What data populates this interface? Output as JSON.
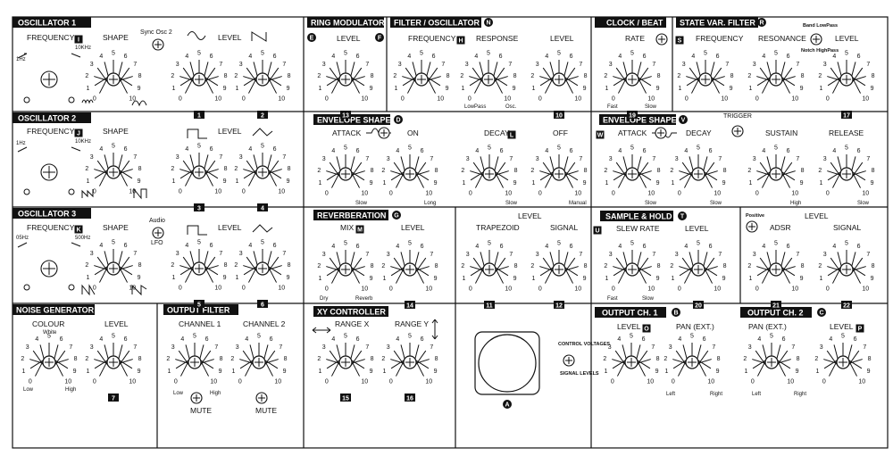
{
  "sections": {
    "osc1": {
      "title": "OSCILLATOR 1"
    },
    "osc2": {
      "title": "OSCILLATOR 2"
    },
    "osc3": {
      "title": "OSCILLATOR 3"
    },
    "noise": {
      "title": "NOISE GENERATOR"
    },
    "outfilt": {
      "title": "OUTPUT FILTER"
    },
    "ring": {
      "title": "RING MODULATOR"
    },
    "filtosc": {
      "title": "FILTER / OSCILLATOR"
    },
    "env1": {
      "title": "ENVELOPE SHAPER"
    },
    "reverb": {
      "title": "REVERBERATION"
    },
    "xy": {
      "title": "XY CONTROLLER"
    },
    "clock": {
      "title": "CLOCK / BEAT"
    },
    "svf": {
      "title": "STATE VAR. FILTER"
    },
    "env2": {
      "title": "ENVELOPE SHAPER"
    },
    "sh": {
      "title": "SAMPLE & HOLD"
    },
    "out1": {
      "title": "OUTPUT CH. 1"
    },
    "out2": {
      "title": "OUTPUT CH. 2"
    }
  },
  "badges": {
    "osc2": "J",
    "osc3": "K",
    "ring_e": "E",
    "ring_f": "F",
    "filtosc": "N",
    "filtosc_freq": "H",
    "env1": "D",
    "reverb": "G",
    "mix": "M",
    "clock": "?",
    "svf": "R",
    "svf_freq": "S",
    "env2": "V",
    "env2_w": "W",
    "sh": "T",
    "sh_u": "U",
    "out1": "B",
    "out2": "C",
    "out1_level": "O",
    "out2_level": "P",
    "env1_decay": "L",
    "osc1": "I",
    "center": "A"
  },
  "labels": {
    "frequency": "FREQUENCY",
    "shape": "SHAPE",
    "level": "LEVEL",
    "sync_osc2": "Sync Osc 2",
    "f1hz": "1Hz",
    "f10khz": "10KHz",
    "f05hz": "05Hz",
    "f500hz": "500Hz",
    "audio": "Audio",
    "lfo": "LFO",
    "colour": "COLOUR",
    "white": "White",
    "low": "Low",
    "high": "High",
    "channel1": "CHANNEL 1",
    "channel2": "CHANNEL 2",
    "mute": "MUTE",
    "response": "RESPONSE",
    "lowpass": "LowPass",
    "osc": "Osc.",
    "attack": "ATTACK",
    "on": "ON",
    "decay": "DECAY",
    "off": "OFF",
    "slow": "Slow",
    "long": "Long",
    "manual": "Manual",
    "mix": "MIX",
    "dry": "Dry",
    "reverb": "Reverb",
    "trapezoid": "TRAPEZOID",
    "signal": "SIGNAL",
    "range_x": "RANGE X",
    "range_y": "RANGE Y",
    "control_voltages": "CONTROL VOLTAGES",
    "signal_levels": "SIGNAL LEVELS",
    "rate": "RATE",
    "fast": "Fast",
    "resonance": "RESONANCE",
    "band_lowpass": "Band LowPass",
    "notch_highpass": "Notch HighPass",
    "trigger": "TRIGGER",
    "sustain": "SUSTAIN",
    "release": "RELEASE",
    "slew_rate": "SLEW RATE",
    "positive": "Positive",
    "adsr": "ADSR",
    "pan_ext": "PAN (EXT.)",
    "left": "Left",
    "right": "Right"
  },
  "dial_numbers": [
    "0",
    "1",
    "2",
    "3",
    "4",
    "5",
    "6",
    "7",
    "8",
    "9",
    "10"
  ],
  "dial_ids": {
    "k1": "1",
    "k2": "2",
    "k3": "3",
    "k4": "4",
    "k5": "5",
    "k6": "6",
    "k7": "7",
    "k10": "10",
    "k11": "11",
    "k12": "12",
    "k13": "13",
    "k14": "14",
    "k15": "15",
    "k16": "16",
    "k17": "17",
    "k18": "18",
    "k19": "19",
    "k20": "20",
    "k21": "21",
    "k22": "22"
  }
}
